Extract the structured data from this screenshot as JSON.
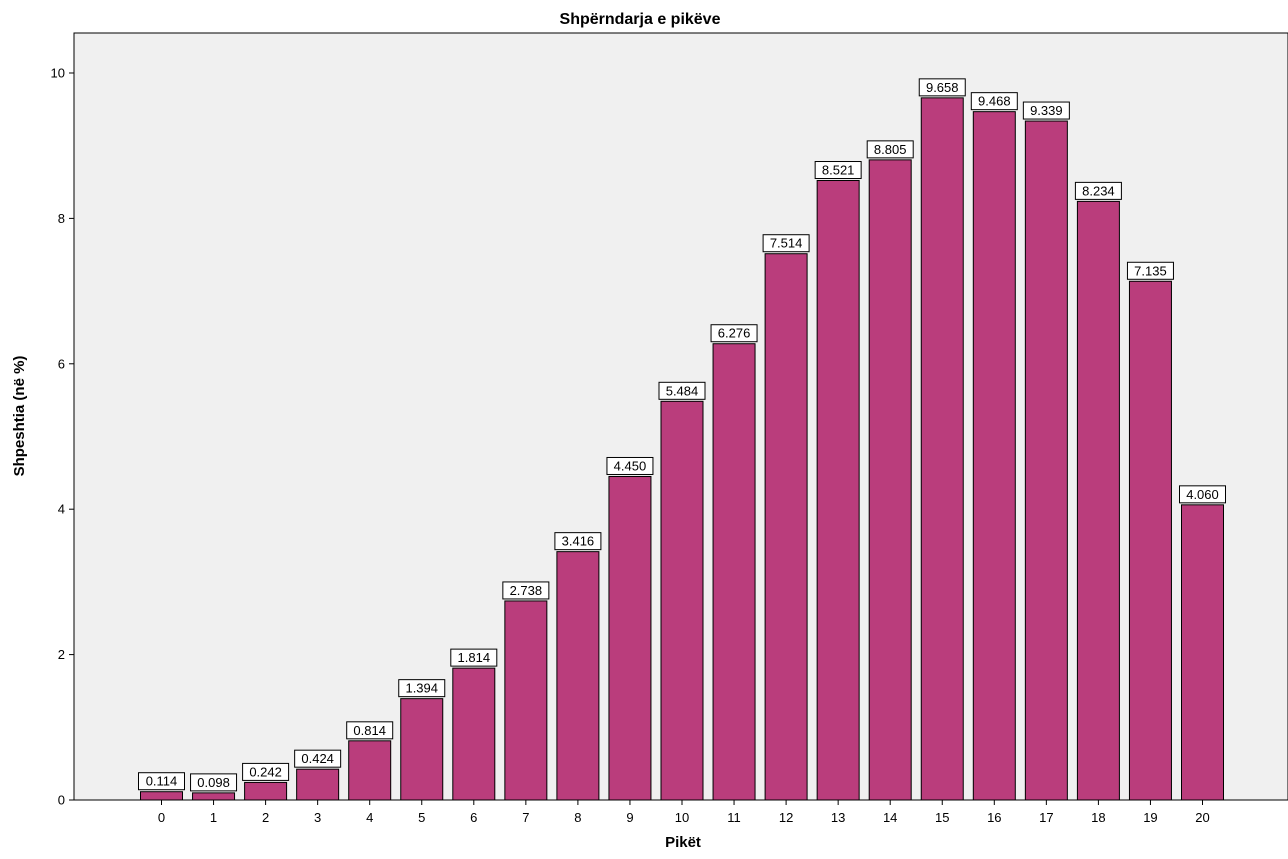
{
  "chart_data": {
    "type": "bar",
    "title": "Shpërndarja e pikëve",
    "xlabel": "Pikët",
    "ylabel": "Shpeshtia (në %)",
    "categories": [
      "0",
      "1",
      "2",
      "3",
      "4",
      "5",
      "6",
      "7",
      "8",
      "9",
      "10",
      "11",
      "12",
      "13",
      "14",
      "15",
      "16",
      "17",
      "18",
      "19",
      "20"
    ],
    "values": [
      0.114,
      0.098,
      0.242,
      0.424,
      0.814,
      1.394,
      1.814,
      2.738,
      3.416,
      4.45,
      5.484,
      6.276,
      7.514,
      8.521,
      8.805,
      9.658,
      9.468,
      9.339,
      8.234,
      7.135,
      4.06
    ],
    "data_labels": [
      "0.114",
      "0.098",
      "0.242",
      "0.424",
      "0.814",
      "1.394",
      "1.814",
      "2.738",
      "3.416",
      "4.450",
      "5.484",
      "6.276",
      "7.514",
      "8.521",
      "8.805",
      "9.658",
      "9.468",
      "9.339",
      "8.234",
      "7.135",
      "4.060"
    ],
    "y_ticks": [
      0,
      2,
      4,
      6,
      8,
      10
    ],
    "ylim": [
      0,
      10.55
    ],
    "grid": false,
    "legend": "none",
    "colors": {
      "bar": "#BA3D7C",
      "plot_background": "#F0F0F0",
      "background": "#FFFFFF"
    }
  }
}
